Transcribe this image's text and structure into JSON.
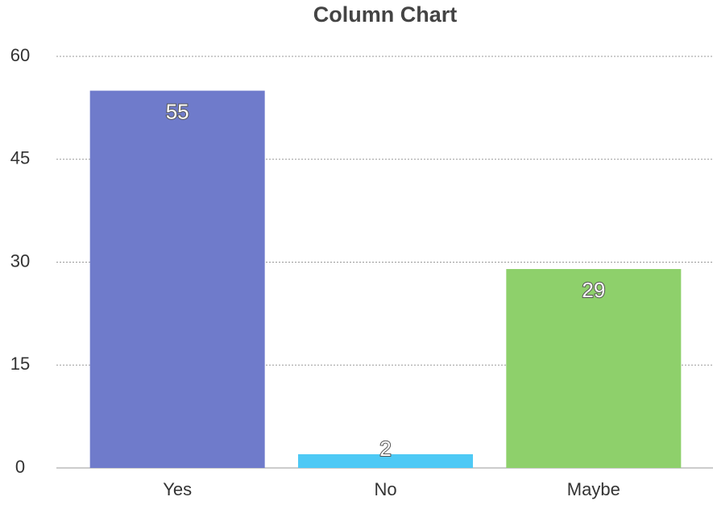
{
  "chart_data": {
    "type": "bar",
    "title": "Column Chart",
    "categories": [
      "Yes",
      "No",
      "Maybe"
    ],
    "values": [
      55,
      2,
      29
    ],
    "colors": [
      "#6f7bcb",
      "#4ec9f5",
      "#8ed06b"
    ],
    "ylim": [
      0,
      60
    ],
    "yticks": [
      0,
      15,
      30,
      45,
      60
    ],
    "grid": true
  }
}
